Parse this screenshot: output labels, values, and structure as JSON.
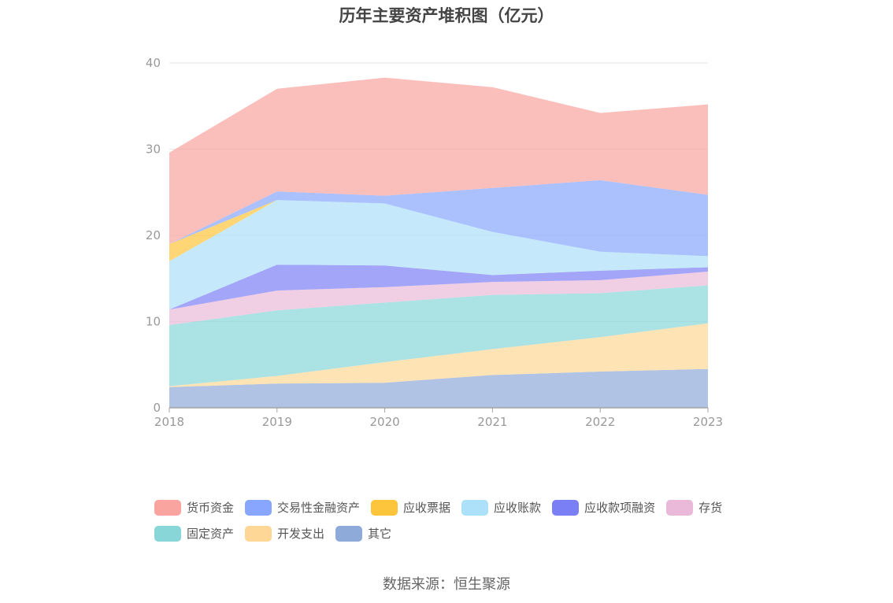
{
  "title": "历年主要资产堆积图（亿元）",
  "source": "数据来源：恒生聚源",
  "chart_data": {
    "type": "area",
    "stacked": true,
    "title": "历年主要资产堆积图（亿元）",
    "xlabel": "",
    "ylabel": "",
    "categories": [
      "2018",
      "2019",
      "2020",
      "2021",
      "2022",
      "2023"
    ],
    "ylim": [
      0,
      40
    ],
    "yticks": [
      0,
      10,
      20,
      30,
      40
    ],
    "grid": true,
    "legend_position": "bottom",
    "series": [
      {
        "name": "其它",
        "color": "#8eaad9",
        "values": [
          2.4,
          2.8,
          2.9,
          3.8,
          4.2,
          4.5
        ]
      },
      {
        "name": "开发支出",
        "color": "#fed796",
        "values": [
          0.1,
          0.9,
          2.4,
          3.0,
          4.0,
          5.3
        ]
      },
      {
        "name": "固定资产",
        "color": "#88d6d8",
        "values": [
          7.1,
          7.6,
          6.9,
          6.3,
          5.1,
          4.4
        ]
      },
      {
        "name": "存货",
        "color": "#eab9d9",
        "values": [
          1.8,
          2.3,
          1.8,
          1.5,
          1.5,
          1.6
        ]
      },
      {
        "name": "应收款项融资",
        "color": "#7b7ff5",
        "values": [
          0.0,
          3.0,
          2.5,
          0.8,
          1.1,
          0.5
        ]
      },
      {
        "name": "应收账款",
        "color": "#ade0f9",
        "values": [
          5.6,
          7.5,
          7.2,
          5.0,
          2.2,
          1.3
        ]
      },
      {
        "name": "应收票据",
        "color": "#fdc53c",
        "values": [
          2.0,
          0.0,
          0.0,
          0.0,
          0.0,
          0.0
        ]
      },
      {
        "name": "交易性金融资产",
        "color": "#88a6fd",
        "values": [
          0.0,
          1.0,
          0.9,
          5.1,
          8.3,
          7.1
        ]
      },
      {
        "name": "货币资金",
        "color": "#f9a49e",
        "values": [
          10.6,
          11.9,
          13.7,
          11.7,
          7.8,
          10.5
        ]
      }
    ]
  },
  "legend_rows": [
    [
      {
        "label": "货币资金",
        "color": "#f9a49e"
      },
      {
        "label": "交易性金融资产",
        "color": "#88a6fd"
      },
      {
        "label": "应收票据",
        "color": "#fdc53c"
      },
      {
        "label": "应收账款",
        "color": "#ade0f9"
      },
      {
        "label": "应收款项融资",
        "color": "#7b7ff5"
      },
      {
        "label": "存货",
        "color": "#eab9d9"
      }
    ],
    [
      {
        "label": "固定资产",
        "color": "#88d6d8"
      },
      {
        "label": "开发支出",
        "color": "#fed796"
      },
      {
        "label": "其它",
        "color": "#8eaad9"
      }
    ]
  ]
}
